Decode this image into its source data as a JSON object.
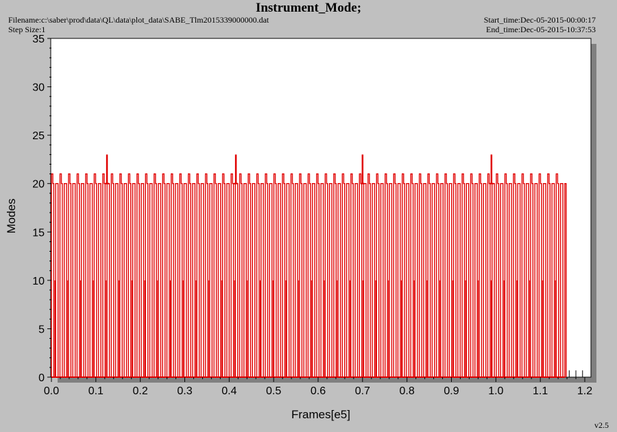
{
  "header": {
    "title": "Instrument_Mode;",
    "filename": "Filename:c:\\saber\\prod\\data\\QL\\data\\plot_data\\SABE_Tlm2015339000000.dat",
    "step_size": "Step Size:1",
    "start_time": "Start_time:Dec-05-2015-00:00:17",
    "end_time": "End_time:Dec-05-2015-10:37:53"
  },
  "footer": {
    "version": "v2.5"
  },
  "chart_data": {
    "type": "line",
    "title": "Instrument_Mode;",
    "xlabel": "Frames[e5]",
    "ylabel": "Modes",
    "xlim": [
      0.0,
      1.2
    ],
    "ylim": [
      0,
      35
    ],
    "xticks": [
      "0.0",
      "0.1",
      "0.2",
      "0.3",
      "0.4",
      "0.5",
      "0.6",
      "0.7",
      "0.8",
      "0.9",
      "1.0",
      "1.1",
      "1.2"
    ],
    "yticks": [
      "0",
      "5",
      "10",
      "15",
      "20",
      "25",
      "30",
      "35"
    ],
    "grid": false,
    "legend": "none",
    "color": "#e00000",
    "series": [
      {
        "values_description_note": "",
        "cycle_start": 0.0,
        "cycle_end": 1.155,
        "cycle_count": 120,
        "base_levels": [
          0,
          20,
          21
        ],
        "spikes": [
          {
            "x": 0.125,
            "y": 23
          },
          {
            "x": 0.415,
            "y": 23
          },
          {
            "x": 0.7,
            "y": 23
          },
          {
            "x": 0.99,
            "y": 23
          }
        ],
        "after_end_y": 0
      }
    ]
  }
}
